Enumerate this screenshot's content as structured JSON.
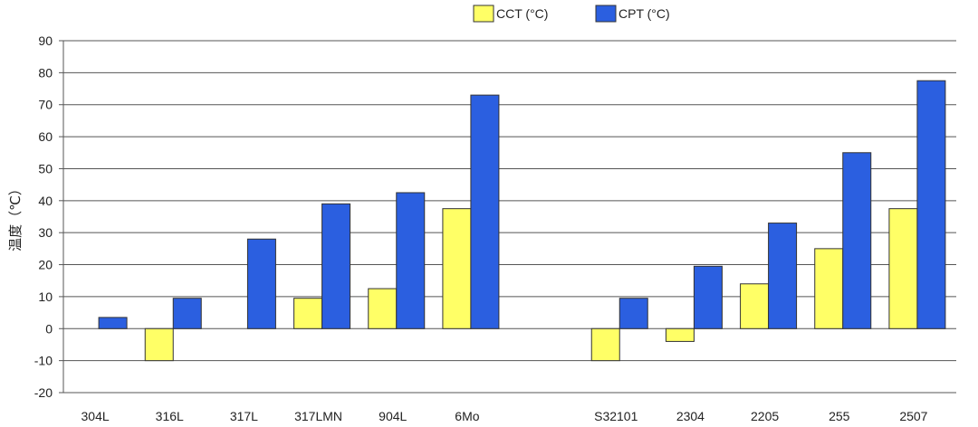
{
  "chart_data": {
    "type": "bar",
    "ylabel": "温度（℃）",
    "ylim": [
      -20,
      90
    ],
    "yticks": [
      -20,
      -10,
      0,
      10,
      20,
      30,
      40,
      50,
      60,
      70,
      80,
      90
    ],
    "grid": true,
    "legend_position": "top",
    "categories": [
      "304L",
      "316L",
      "317L",
      "317LMN",
      "904L",
      "6Mo",
      "",
      "S32101",
      "2304",
      "2205",
      "255",
      "2507"
    ],
    "series": [
      {
        "name": "CCT (°C)",
        "color": "#ffff66",
        "values": [
          null,
          -10,
          0,
          9.5,
          12.5,
          37.5,
          null,
          -10,
          -4,
          14,
          25,
          37.5
        ]
      },
      {
        "name": "CPT (°C)",
        "color": "#2b5fe0",
        "values": [
          3.5,
          9.5,
          28,
          39,
          42.5,
          73,
          null,
          9.5,
          19.5,
          33,
          55,
          77.5
        ]
      }
    ]
  }
}
